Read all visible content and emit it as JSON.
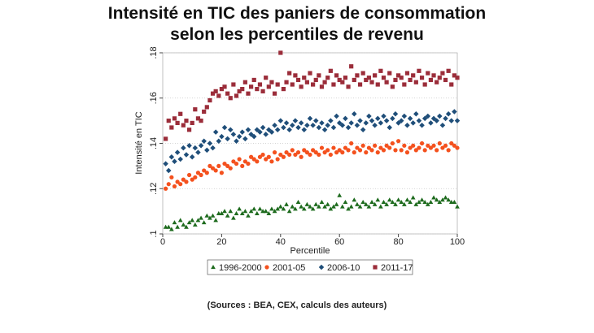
{
  "chart_data": {
    "type": "scatter",
    "title": "Intensité en TIC des paniers de consommation selon les percentiles de revenu",
    "xlabel": "Percentile",
    "ylabel": "Intensité en TIC",
    "note": "(Sources : BEA, CEX, calculs des auteurs)",
    "xlim": [
      0,
      100
    ],
    "xticks": [
      0,
      20,
      40,
      60,
      80,
      100
    ],
    "ylim": [
      0.1,
      0.18
    ],
    "yticks": [
      {
        "value": 0.1,
        "label": ".1"
      },
      {
        "value": 0.12,
        "label": ".12"
      },
      {
        "value": 0.14,
        "label": ".14"
      },
      {
        "value": 0.16,
        "label": ".16"
      },
      {
        "value": 0.18,
        "label": ".18"
      }
    ],
    "grid": true,
    "legend": "bottom",
    "x": [
      1,
      2,
      3,
      4,
      5,
      6,
      7,
      8,
      9,
      10,
      11,
      12,
      13,
      14,
      15,
      16,
      17,
      18,
      19,
      20,
      21,
      22,
      23,
      24,
      25,
      26,
      27,
      28,
      29,
      30,
      31,
      32,
      33,
      34,
      35,
      36,
      37,
      38,
      39,
      40,
      41,
      42,
      43,
      44,
      45,
      46,
      47,
      48,
      49,
      50,
      51,
      52,
      53,
      54,
      55,
      56,
      57,
      58,
      59,
      60,
      61,
      62,
      63,
      64,
      65,
      66,
      67,
      68,
      69,
      70,
      71,
      72,
      73,
      74,
      75,
      76,
      77,
      78,
      79,
      80,
      81,
      82,
      83,
      84,
      85,
      86,
      87,
      88,
      89,
      90,
      91,
      92,
      93,
      94,
      95,
      96,
      97,
      98,
      99,
      100
    ],
    "series": [
      {
        "name": "1996-2000",
        "color": "#1e6b1e",
        "marker": "triangle",
        "values": [
          0.103,
          0.103,
          0.102,
          0.105,
          0.103,
          0.106,
          0.104,
          0.103,
          0.105,
          0.106,
          0.104,
          0.106,
          0.107,
          0.105,
          0.108,
          0.107,
          0.108,
          0.106,
          0.109,
          0.109,
          0.11,
          0.108,
          0.11,
          0.107,
          0.109,
          0.111,
          0.109,
          0.11,
          0.108,
          0.11,
          0.111,
          0.109,
          0.111,
          0.11,
          0.11,
          0.109,
          0.111,
          0.11,
          0.111,
          0.112,
          0.111,
          0.113,
          0.11,
          0.112,
          0.111,
          0.114,
          0.112,
          0.111,
          0.113,
          0.112,
          0.111,
          0.113,
          0.112,
          0.114,
          0.112,
          0.113,
          0.111,
          0.112,
          0.113,
          0.117,
          0.112,
          0.114,
          0.111,
          0.112,
          0.115,
          0.113,
          0.112,
          0.114,
          0.113,
          0.112,
          0.114,
          0.113,
          0.115,
          0.112,
          0.114,
          0.113,
          0.115,
          0.114,
          0.113,
          0.115,
          0.114,
          0.113,
          0.115,
          0.114,
          0.116,
          0.113,
          0.114,
          0.115,
          0.114,
          0.113,
          0.114,
          0.116,
          0.115,
          0.114,
          0.115,
          0.116,
          0.115,
          0.114,
          0.114,
          0.112
        ]
      },
      {
        "name": "2001-05",
        "color": "#f4511e",
        "marker": "circle",
        "values": [
          0.12,
          0.122,
          0.125,
          0.121,
          0.123,
          0.122,
          0.124,
          0.123,
          0.126,
          0.124,
          0.125,
          0.127,
          0.126,
          0.128,
          0.127,
          0.13,
          0.129,
          0.128,
          0.13,
          0.127,
          0.131,
          0.13,
          0.129,
          0.132,
          0.131,
          0.133,
          0.13,
          0.132,
          0.131,
          0.134,
          0.133,
          0.132,
          0.134,
          0.135,
          0.133,
          0.134,
          0.132,
          0.136,
          0.133,
          0.135,
          0.134,
          0.136,
          0.135,
          0.137,
          0.135,
          0.136,
          0.134,
          0.137,
          0.136,
          0.135,
          0.137,
          0.136,
          0.135,
          0.138,
          0.136,
          0.137,
          0.135,
          0.138,
          0.136,
          0.137,
          0.136,
          0.138,
          0.137,
          0.14,
          0.136,
          0.138,
          0.137,
          0.139,
          0.136,
          0.138,
          0.137,
          0.139,
          0.136,
          0.138,
          0.137,
          0.139,
          0.138,
          0.14,
          0.137,
          0.141,
          0.137,
          0.139,
          0.136,
          0.138,
          0.139,
          0.137,
          0.138,
          0.14,
          0.137,
          0.139,
          0.138,
          0.139,
          0.137,
          0.14,
          0.138,
          0.139,
          0.137,
          0.14,
          0.139,
          0.138
        ]
      },
      {
        "name": "2006-10",
        "color": "#1f4e79",
        "marker": "diamond",
        "values": [
          0.131,
          0.128,
          0.134,
          0.132,
          0.136,
          0.133,
          0.138,
          0.135,
          0.139,
          0.134,
          0.138,
          0.136,
          0.139,
          0.141,
          0.137,
          0.14,
          0.138,
          0.145,
          0.141,
          0.143,
          0.147,
          0.142,
          0.146,
          0.144,
          0.141,
          0.143,
          0.145,
          0.142,
          0.146,
          0.144,
          0.143,
          0.146,
          0.145,
          0.147,
          0.144,
          0.146,
          0.145,
          0.148,
          0.146,
          0.15,
          0.147,
          0.149,
          0.146,
          0.148,
          0.15,
          0.147,
          0.149,
          0.146,
          0.148,
          0.151,
          0.148,
          0.15,
          0.147,
          0.149,
          0.146,
          0.148,
          0.15,
          0.147,
          0.152,
          0.149,
          0.148,
          0.151,
          0.147,
          0.149,
          0.153,
          0.148,
          0.15,
          0.146,
          0.149,
          0.152,
          0.15,
          0.148,
          0.151,
          0.149,
          0.152,
          0.15,
          0.147,
          0.151,
          0.153,
          0.149,
          0.15,
          0.152,
          0.148,
          0.151,
          0.149,
          0.153,
          0.15,
          0.148,
          0.151,
          0.152,
          0.149,
          0.151,
          0.15,
          0.152,
          0.148,
          0.151,
          0.153,
          0.15,
          0.154,
          0.15
        ]
      },
      {
        "name": "2011-17",
        "color": "#9b2d3a",
        "marker": "square",
        "values": [
          0.142,
          0.15,
          0.147,
          0.151,
          0.149,
          0.153,
          0.148,
          0.15,
          0.146,
          0.149,
          0.155,
          0.151,
          0.15,
          0.154,
          0.156,
          0.159,
          0.162,
          0.163,
          0.161,
          0.164,
          0.165,
          0.162,
          0.16,
          0.166,
          0.161,
          0.163,
          0.164,
          0.167,
          0.162,
          0.165,
          0.168,
          0.164,
          0.166,
          0.163,
          0.169,
          0.165,
          0.167,
          0.162,
          0.166,
          0.18,
          0.164,
          0.167,
          0.171,
          0.166,
          0.17,
          0.168,
          0.165,
          0.169,
          0.167,
          0.171,
          0.166,
          0.168,
          0.17,
          0.165,
          0.167,
          0.169,
          0.172,
          0.166,
          0.17,
          0.168,
          0.167,
          0.169,
          0.165,
          0.174,
          0.168,
          0.17,
          0.166,
          0.171,
          0.168,
          0.169,
          0.167,
          0.17,
          0.166,
          0.172,
          0.169,
          0.167,
          0.171,
          0.165,
          0.168,
          0.17,
          0.169,
          0.166,
          0.171,
          0.168,
          0.17,
          0.167,
          0.172,
          0.169,
          0.166,
          0.171,
          0.168,
          0.17,
          0.167,
          0.169,
          0.171,
          0.168,
          0.172,
          0.166,
          0.17,
          0.169
        ]
      }
    ]
  }
}
